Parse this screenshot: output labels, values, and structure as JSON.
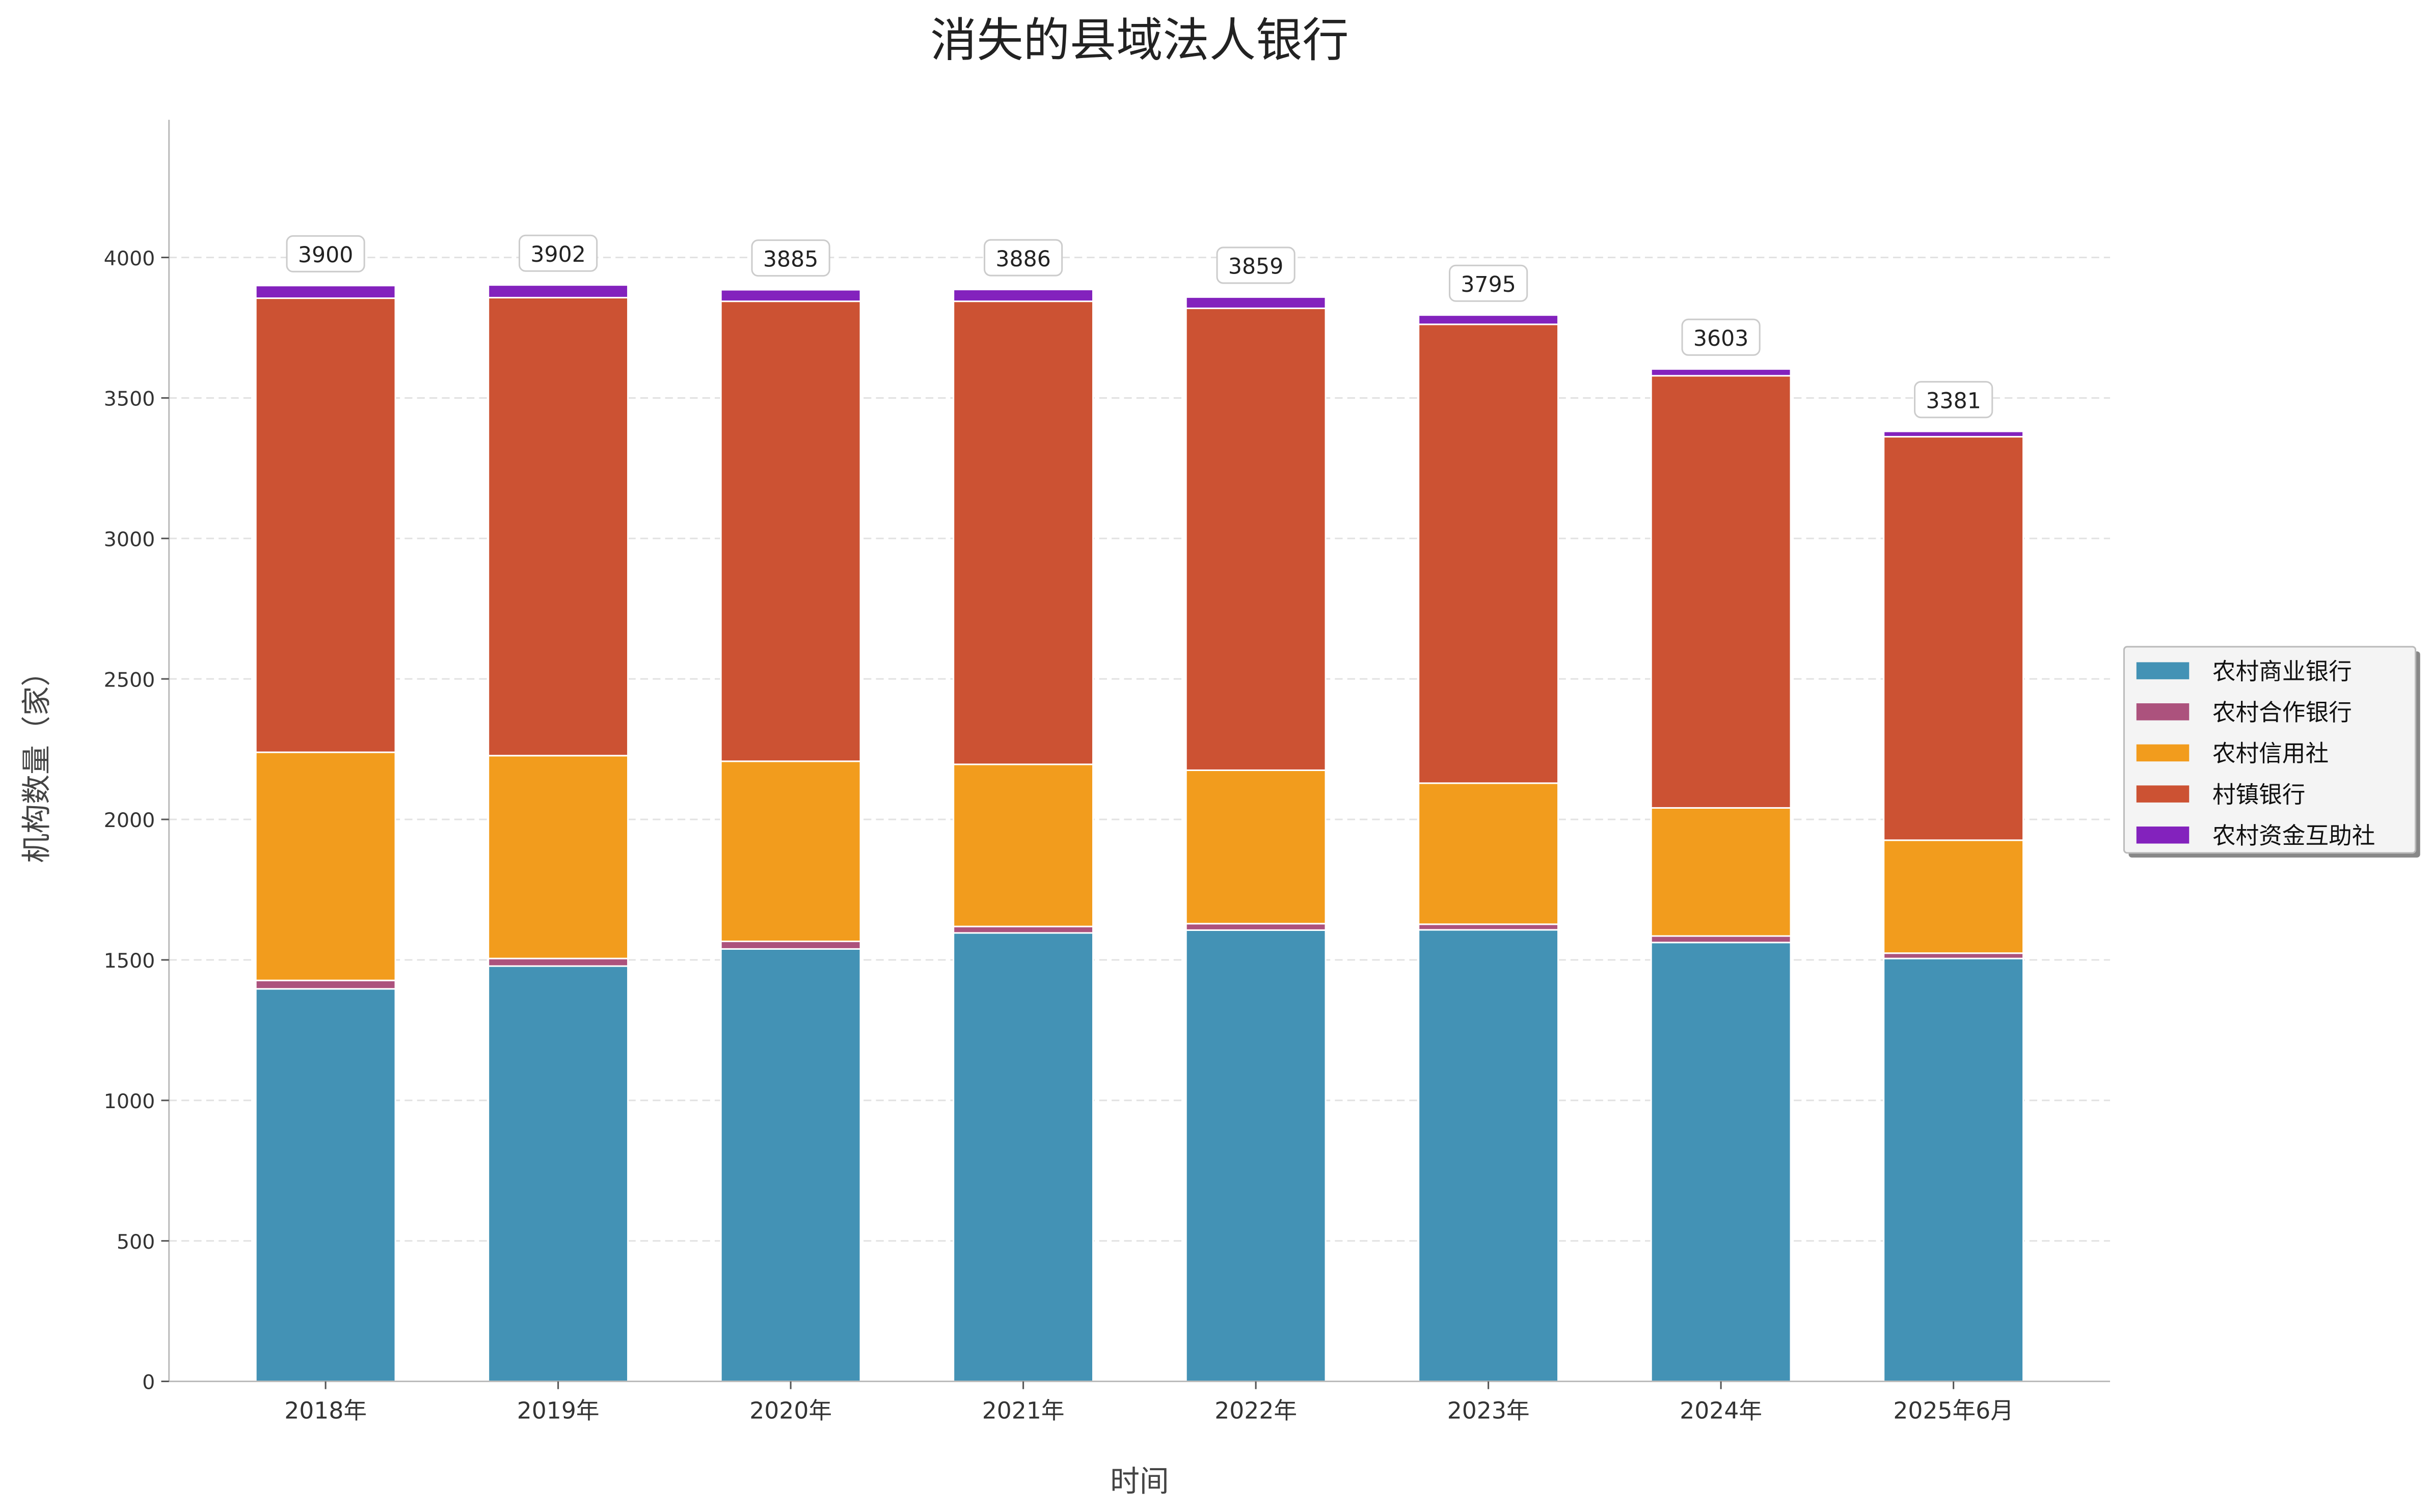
{
  "chart_data": {
    "type": "bar",
    "stacked": true,
    "title": "消失的县域法人银行",
    "xlabel": "时间",
    "ylabel": "机构数量（家）",
    "ylim": [
      0,
      4490
    ],
    "yticks": [
      0,
      500,
      1000,
      1500,
      2000,
      2500,
      3000,
      3500,
      4000
    ],
    "grid": "y-dashed",
    "legend_position": "right",
    "categories": [
      "2018年",
      "2019年",
      "2020年",
      "2021年",
      "2022年",
      "2023年",
      "2024年",
      "2025年6月"
    ],
    "series": [
      {
        "name": "农村商业银行",
        "color": "#4392b5",
        "values": [
          1397,
          1478,
          1539,
          1596,
          1606,
          1607,
          1562,
          1505
        ]
      },
      {
        "name": "农村合作银行",
        "color": "#ac527d",
        "values": [
          30,
          27,
          27,
          23,
          23,
          20,
          23,
          19
        ]
      },
      {
        "name": "农村信用社",
        "color": "#f29c1d",
        "values": [
          812,
          722,
          641,
          577,
          546,
          502,
          456,
          402
        ]
      },
      {
        "name": "村镇银行",
        "color": "#cc5233",
        "values": [
          1616,
          1630,
          1637,
          1648,
          1644,
          1633,
          1538,
          1436
        ]
      },
      {
        "name": "农村资金互助社",
        "color": "#8322bd",
        "values": [
          45,
          45,
          41,
          42,
          40,
          33,
          24,
          19
        ]
      }
    ],
    "totals": [
      "3900",
      "3902",
      "3885",
      "3886",
      "3859",
      "3795",
      "3603",
      "3381"
    ]
  }
}
